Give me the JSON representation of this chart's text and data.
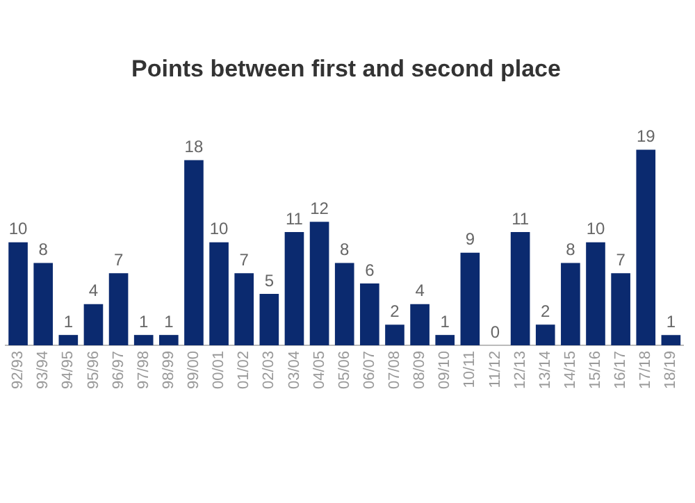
{
  "chart_data": {
    "type": "bar",
    "title": "Points between first and second place",
    "categories": [
      "92/93",
      "93/94",
      "94/95",
      "95/96",
      "96/97",
      "97/98",
      "98/99",
      "99/00",
      "00/01",
      "01/02",
      "02/03",
      "03/04",
      "04/05",
      "05/06",
      "06/07",
      "07/08",
      "08/09",
      "09/10",
      "10/11",
      "11/12",
      "12/13",
      "13/14",
      "14/15",
      "15/16",
      "16/17",
      "17/18",
      "18/19"
    ],
    "values": [
      10,
      8,
      1,
      4,
      7,
      1,
      1,
      18,
      10,
      7,
      5,
      11,
      12,
      8,
      6,
      2,
      4,
      1,
      9,
      0,
      11,
      2,
      8,
      10,
      7,
      19,
      1
    ],
    "color": "#0b2a6f",
    "data_labels": true,
    "grid": false,
    "legend": false
  }
}
